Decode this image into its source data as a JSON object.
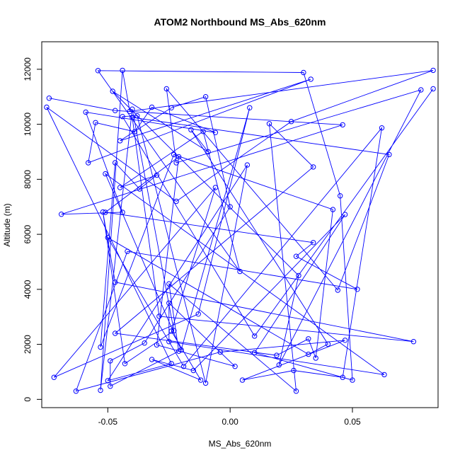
{
  "chart_data": {
    "type": "line",
    "title": "ATOM2 Northbound MS_Abs_620nm",
    "xlabel": "MS_Abs_620nm",
    "ylabel": "Altitude (m)",
    "xlim": [
      -0.077,
      0.085
    ],
    "ylim": [
      -300,
      13000
    ],
    "x_ticks": [
      -0.05,
      0.0,
      0.05
    ],
    "x_tick_labels": [
      "-0.05",
      "0.00",
      "0.05"
    ],
    "y_ticks": [
      0,
      2000,
      4000,
      6000,
      8000,
      10000,
      12000
    ],
    "y_tick_labels": [
      "0",
      "2000",
      "4000",
      "6000",
      "8000",
      "10000",
      "12000"
    ],
    "grid": false,
    "series": [
      {
        "color": "#0000ff",
        "marker": "open-circle",
        "x": [
          -0.074,
          -0.047,
          0.046,
          -0.069,
          -0.044,
          -0.059,
          -0.006,
          -0.032,
          -0.039,
          -0.055,
          -0.058,
          0.033,
          -0.045,
          -0.024,
          -0.01,
          0.0,
          -0.035,
          -0.049,
          -0.049,
          -0.021,
          -0.025,
          0.027,
          0.016,
          0.034,
          -0.047,
          0.019,
          0.032,
          0.035,
          0.042,
          -0.023,
          -0.053,
          -0.047,
          -0.037,
          -0.03,
          -0.045,
          -0.011,
          0.004,
          -0.054,
          0.03,
          0.045,
          0.05,
          0.01,
          0.047,
          -0.015,
          -0.032,
          -0.012,
          -0.024,
          -0.006,
          -0.072,
          -0.013,
          0.008,
          -0.02,
          -0.051,
          0.063,
          -0.025,
          -0.025,
          0.002,
          -0.03,
          -0.021,
          -0.051,
          0.034,
          0.027,
          0.052,
          -0.042,
          -0.063,
          -0.004,
          0.047,
          0.005,
          0.026,
          0.046,
          0.062,
          -0.019,
          -0.05,
          0.032,
          0.04,
          -0.016,
          -0.009,
          -0.048,
          0.028,
          0.02,
          0.078,
          -0.022,
          -0.026,
          0.044,
          0.065,
          -0.04,
          -0.029,
          0.075,
          -0.047,
          -0.052,
          -0.043,
          -0.023,
          -0.04,
          -0.053,
          -0.044,
          -0.041,
          0.083,
          0.025,
          -0.022,
          -0.075,
          -0.024,
          -0.05,
          0.007,
          -0.01,
          -0.038,
          -0.044,
          0.01,
          0.083
        ],
        "y": [
          10950,
          10500,
          9980,
          6730,
          6800,
          10440,
          9700,
          10620,
          9730,
          10060,
          8600,
          11640,
          9400,
          10600,
          11000,
          7000,
          2050,
          1400,
          480,
          1750,
          4200,
          300,
          10020,
          8450,
          2400,
          1600,
          2200,
          1500,
          6900,
          8900,
          1900,
          8600,
          7650,
          8150,
          7700,
          9740,
          4650,
          11950,
          11880,
          7400,
          700,
          1700,
          6720,
          1050,
          1450,
          700,
          2480,
          7700,
          800,
          3100,
          10600,
          1800,
          8200,
          900,
          2100,
          3500,
          1200,
          1980,
          8820,
          6800,
          5700,
          5200,
          4000,
          5380,
          300,
          1720,
          2150,
          700,
          1050,
          800,
          9870,
          1200,
          5880,
          1640,
          2010,
          9800,
          9000,
          11200,
          4500,
          1250,
          11250,
          8600,
          11290,
          3970,
          8900,
          10250,
          3020,
          2100,
          4260,
          6810,
          1300,
          2500,
          10550,
          330,
          11960,
          10470,
          11960,
          10100,
          7200,
          10620,
          1300,
          680,
          8520,
          590,
          10310,
          10280,
          2300,
          11290
        ]
      }
    ]
  }
}
